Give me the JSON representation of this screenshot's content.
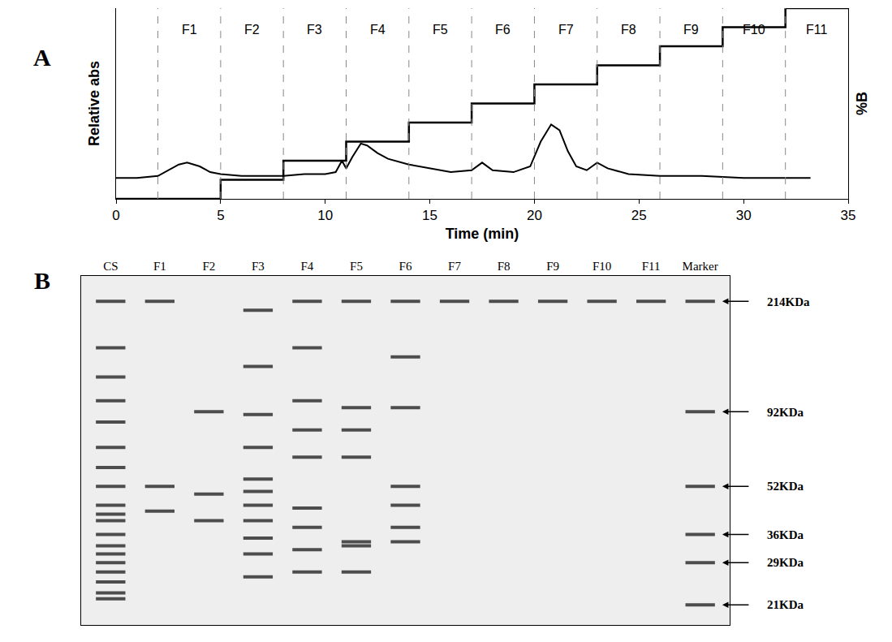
{
  "chart_data": [
    {
      "type": "line",
      "panel": "A",
      "x_label": "Time (min)",
      "y_label": "Relative abs",
      "y2_label": "%B",
      "xlim": [
        0,
        35
      ],
      "xticks": [
        0,
        5,
        10,
        15,
        20,
        25,
        30,
        35
      ],
      "ylim": [
        0,
        1
      ],
      "y2lim": [
        0,
        100
      ],
      "tick_labels": "x",
      "grid": false,
      "fractions": [
        {
          "label": "F1",
          "start": 2,
          "end": 5
        },
        {
          "label": "F2",
          "start": 5,
          "end": 8
        },
        {
          "label": "F3",
          "start": 8,
          "end": 11
        },
        {
          "label": "F4",
          "start": 11,
          "end": 14
        },
        {
          "label": "F5",
          "start": 14,
          "end": 17
        },
        {
          "label": "F6",
          "start": 17,
          "end": 20
        },
        {
          "label": "F7",
          "start": 20,
          "end": 23
        },
        {
          "label": "F8",
          "start": 23,
          "end": 26
        },
        {
          "label": "F9",
          "start": 26,
          "end": 29
        },
        {
          "label": "F10",
          "start": 29,
          "end": 32
        },
        {
          "label": "F11",
          "start": 32,
          "end": 35
        }
      ],
      "series": [
        {
          "color": "#000000",
          "line_style": "solid",
          "x": [
            0,
            1,
            2,
            2.5,
            3,
            3.4,
            4,
            4.5,
            5,
            6,
            7,
            8,
            9,
            10,
            10.5,
            10.8,
            11,
            11.3,
            11.7,
            12,
            12.5,
            13,
            14,
            15,
            16,
            17,
            17.5,
            18,
            19,
            19.8,
            20.3,
            20.8,
            21.2,
            21.6,
            22,
            22.5,
            23,
            23.5,
            24.5,
            26,
            28,
            30,
            32,
            33.2
          ],
          "values": [
            0.11,
            0.11,
            0.12,
            0.15,
            0.18,
            0.19,
            0.17,
            0.14,
            0.13,
            0.12,
            0.12,
            0.12,
            0.13,
            0.13,
            0.14,
            0.2,
            0.16,
            0.22,
            0.29,
            0.28,
            0.24,
            0.21,
            0.18,
            0.16,
            0.14,
            0.15,
            0.19,
            0.15,
            0.14,
            0.17,
            0.3,
            0.39,
            0.36,
            0.25,
            0.17,
            0.15,
            0.19,
            0.16,
            0.13,
            0.12,
            0.12,
            0.11,
            0.11,
            0.11
          ]
        },
        {
          "color": "#000000",
          "line_style": "step",
          "axis": "y2",
          "x": [
            0,
            5,
            8,
            11,
            14,
            17,
            20,
            23,
            26,
            29,
            32,
            35
          ],
          "values": [
            0,
            10,
            20,
            30,
            40,
            50,
            60,
            70,
            80,
            90,
            100,
            100
          ]
        }
      ]
    },
    {
      "type": "gel",
      "panel": "B",
      "categories": [
        "CS",
        "F1",
        "F2",
        "F3",
        "F4",
        "F5",
        "F6",
        "F7",
        "F8",
        "F9",
        "F10",
        "F11",
        "Marker"
      ],
      "log": "y",
      "ylim": [
        18,
        260
      ],
      "yticks": [
        {
          "value": 214,
          "label": "214KDa"
        },
        {
          "value": 92,
          "label": "92KDa"
        },
        {
          "value": 52,
          "label": "52KDa"
        },
        {
          "value": 36,
          "label": "36KDa"
        },
        {
          "value": 29,
          "label": "29KDa"
        },
        {
          "value": 21,
          "label": "21KDa"
        }
      ],
      "color": "#4d4d4d",
      "bands": [
        [
          214,
          150,
          120,
          100,
          85,
          70,
          60,
          52,
          45,
          42,
          40,
          36,
          33,
          31,
          29,
          27,
          25,
          23,
          22
        ],
        [
          214,
          52,
          43
        ],
        [
          92,
          49,
          40
        ],
        [
          200,
          130,
          90,
          70,
          55,
          50,
          45,
          40,
          35,
          31,
          26
        ],
        [
          214,
          150,
          100,
          80,
          65,
          44,
          38,
          32,
          27
        ],
        [
          214,
          95,
          80,
          65,
          34,
          33,
          27
        ],
        [
          214,
          140,
          95,
          52,
          45,
          38,
          34
        ],
        [
          214
        ],
        [
          214
        ],
        [
          214
        ],
        [
          214
        ],
        [
          214
        ],
        [
          214,
          92,
          52,
          36,
          29,
          21
        ]
      ]
    }
  ]
}
